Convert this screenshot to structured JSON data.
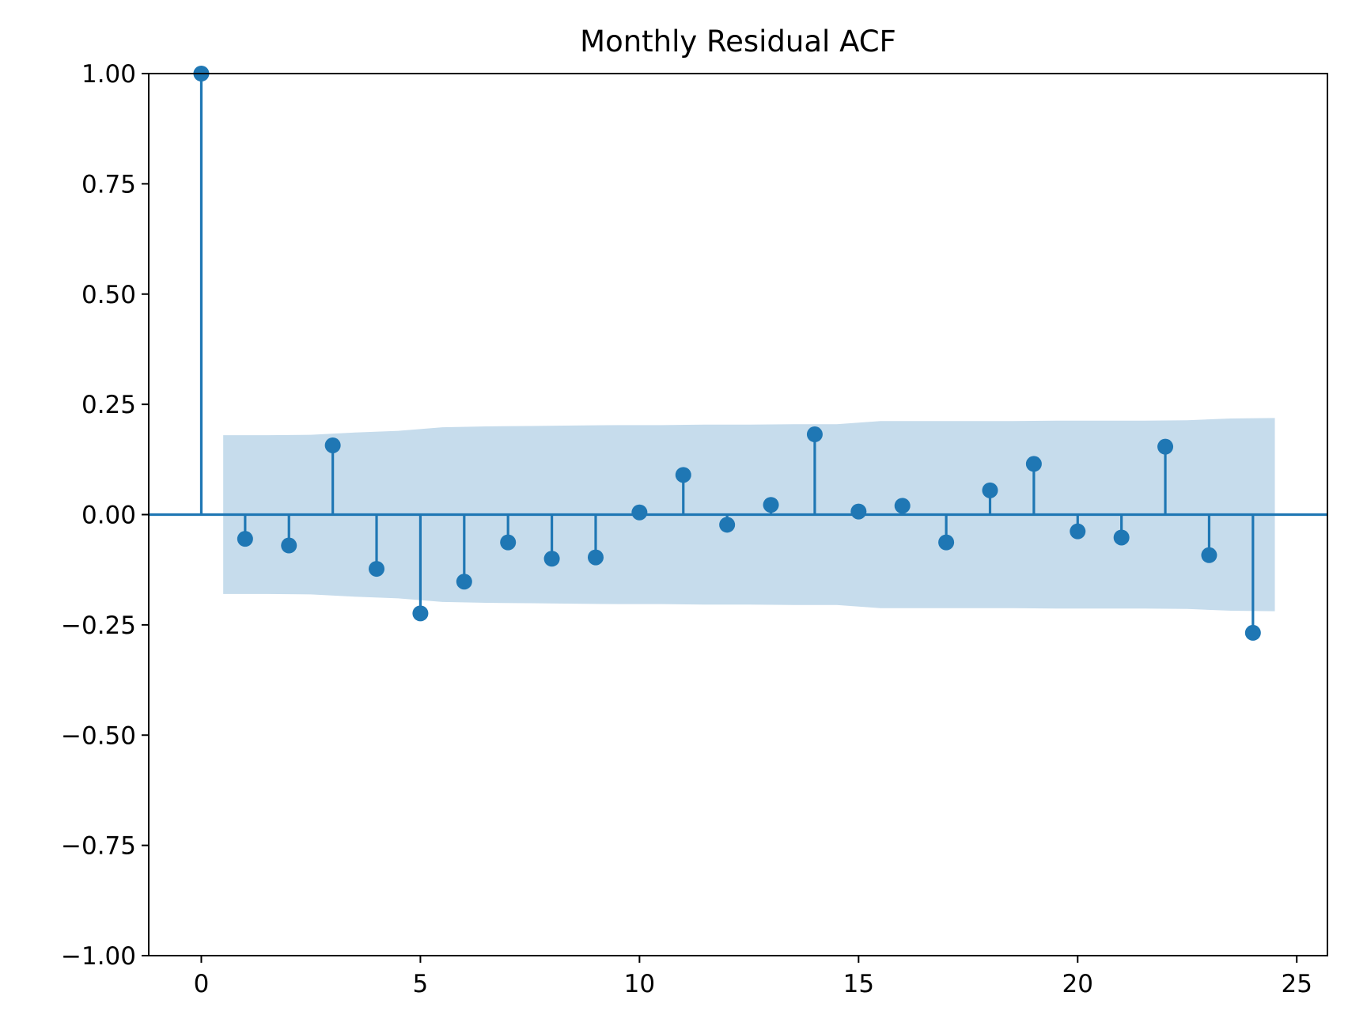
{
  "chart_data": {
    "type": "stem",
    "title": "Monthly Residual ACF",
    "xlabel": "",
    "ylabel": "",
    "xlim": [
      -1.2,
      25.7
    ],
    "ylim": [
      -1.0,
      1.0
    ],
    "grid": false,
    "x_ticks": [
      0,
      5,
      10,
      15,
      20,
      25
    ],
    "x_tick_labels": [
      "0",
      "5",
      "10",
      "15",
      "20",
      "25"
    ],
    "y_ticks": [
      1.0,
      0.75,
      0.5,
      0.25,
      0.0,
      -0.25,
      -0.5,
      -0.75,
      -1.0
    ],
    "y_tick_labels": [
      "1.00",
      "0.75",
      "0.50",
      "0.25",
      "0.00",
      "−0.25",
      "−0.50",
      "−0.75",
      "−1.00"
    ],
    "lags": [
      0,
      1,
      2,
      3,
      4,
      5,
      6,
      7,
      8,
      9,
      10,
      11,
      12,
      13,
      14,
      15,
      16,
      17,
      18,
      19,
      20,
      21,
      22,
      23,
      24
    ],
    "acf": [
      1.0,
      -0.055,
      -0.07,
      0.157,
      -0.123,
      -0.224,
      -0.152,
      -0.063,
      -0.1,
      -0.097,
      0.005,
      0.09,
      -0.023,
      0.022,
      0.182,
      0.007,
      0.02,
      -0.063,
      0.055,
      0.115,
      -0.038,
      -0.052,
      0.154,
      -0.092,
      -0.268
    ],
    "confidence_band": {
      "x": [
        0.5,
        1.5,
        2.5,
        3.5,
        4.5,
        5.5,
        6.5,
        7.5,
        8.5,
        9.5,
        10.5,
        11.5,
        12.5,
        13.5,
        14.5,
        15.5,
        16.5,
        17.5,
        18.5,
        19.5,
        20.5,
        21.5,
        22.5,
        23.5,
        24.5
      ],
      "upper": [
        0.18,
        0.18,
        0.181,
        0.186,
        0.19,
        0.198,
        0.2,
        0.201,
        0.202,
        0.203,
        0.203,
        0.204,
        0.204,
        0.205,
        0.205,
        0.212,
        0.212,
        0.212,
        0.212,
        0.213,
        0.213,
        0.213,
        0.214,
        0.218,
        0.219
      ],
      "lower": [
        -0.18,
        -0.18,
        -0.181,
        -0.186,
        -0.19,
        -0.198,
        -0.2,
        -0.201,
        -0.202,
        -0.203,
        -0.203,
        -0.204,
        -0.204,
        -0.205,
        -0.205,
        -0.212,
        -0.212,
        -0.212,
        -0.212,
        -0.213,
        -0.213,
        -0.213,
        -0.214,
        -0.218,
        -0.219
      ]
    },
    "colors": {
      "stem": "#1f77b4",
      "band": "#c6dcec",
      "axes": "#000000"
    }
  }
}
